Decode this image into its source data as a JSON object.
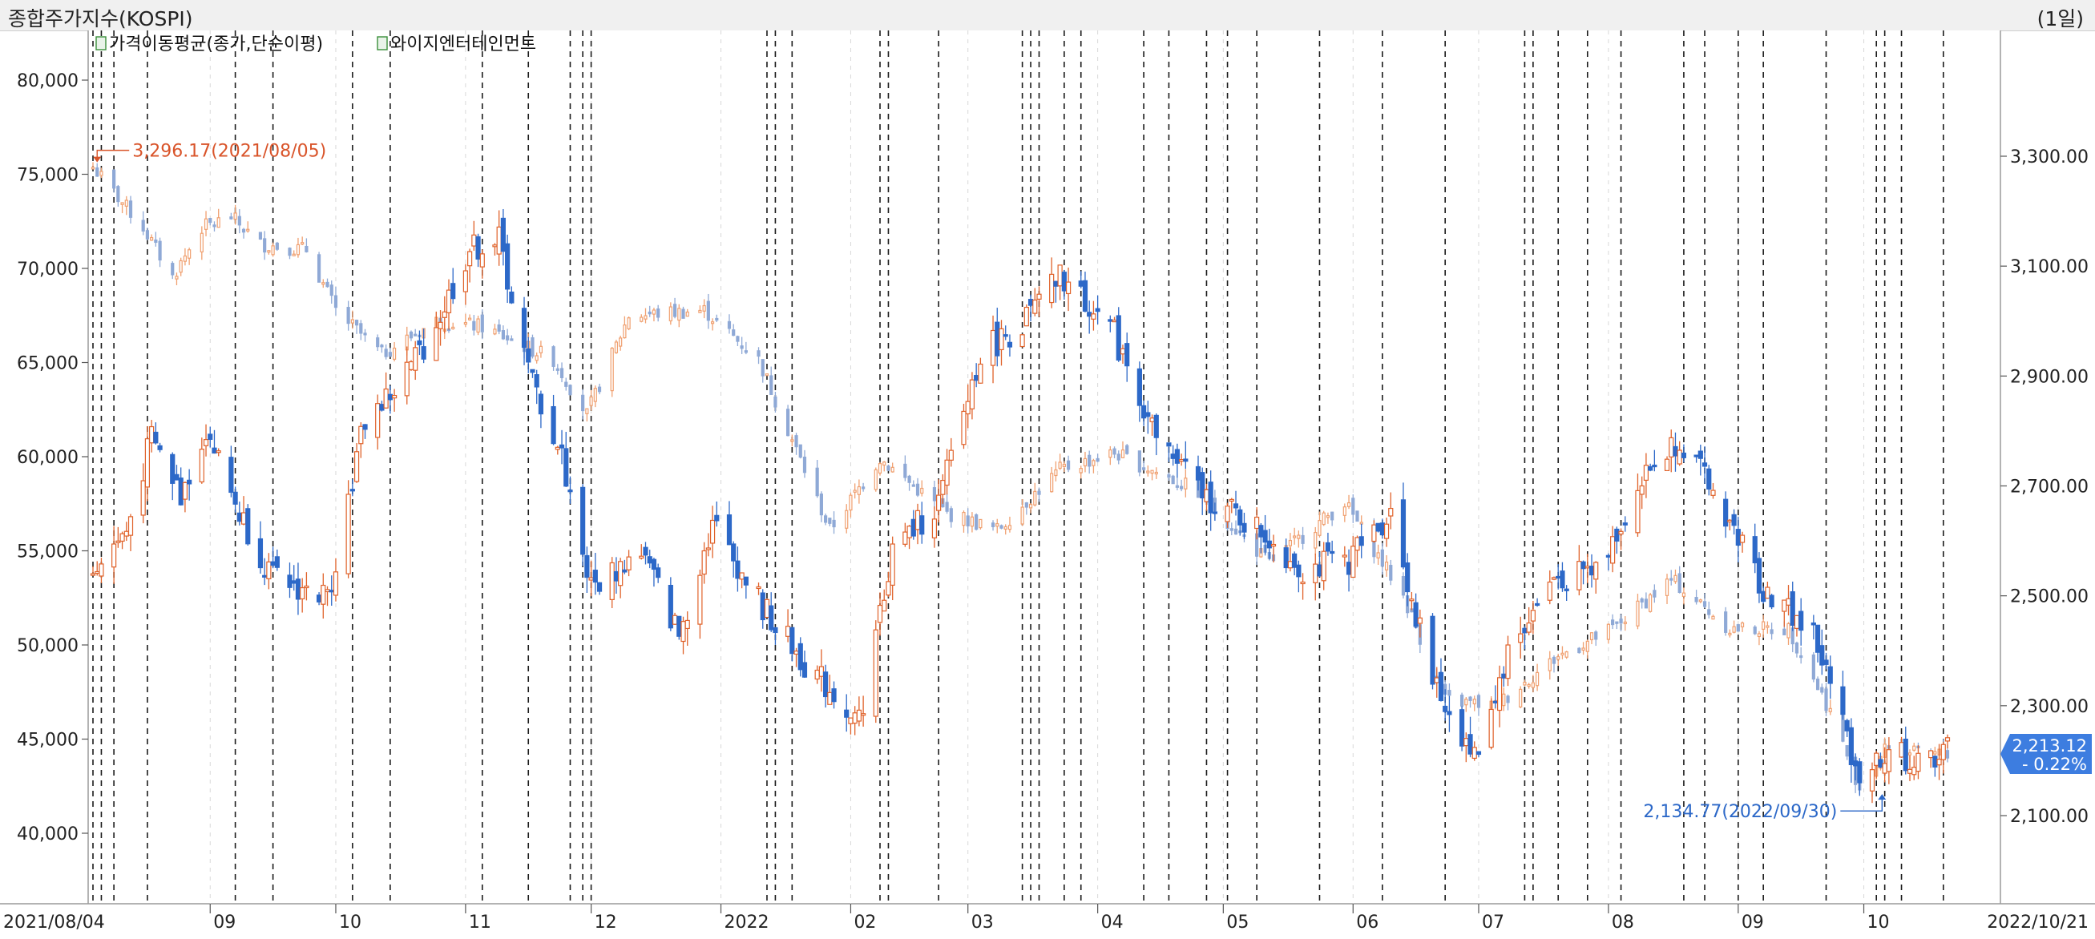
{
  "window": {
    "title": "종합주가지수(KOSPI)",
    "period": "(1일)"
  },
  "legend": [
    {
      "label": "가격이동평균(종가,단순이평)",
      "icon": "series-checkbox-icon"
    },
    {
      "label": "와이지엔터테인먼트",
      "icon": "series-checkbox-icon"
    }
  ],
  "colors": {
    "up": "#e0622a",
    "down": "#2c68c8",
    "up_light": "#f0a070",
    "down_light": "#8fa9d6",
    "badge": "#3d7de0"
  },
  "current": {
    "value": "2,213.12",
    "change": "- 0.22%"
  },
  "annotations": {
    "high": {
      "text": "3,296.17(2021/08/05)",
      "value": 3296.17,
      "date": "2021-08-05"
    },
    "low": {
      "text": "2,134.77(2022/09/30)",
      "value": 2134.77,
      "date": "2022-09-30"
    }
  },
  "chart_data": {
    "type": "candlestick",
    "x_start": "2021-08-04",
    "x_end": "2022-10-21",
    "x_tick_labels": [
      "2021/08/04",
      "09",
      "10",
      "11",
      "12",
      "2022",
      "02",
      "03",
      "04",
      "05",
      "06",
      "07",
      "08",
      "09",
      "10",
      "2022/10/21"
    ],
    "y_left": {
      "ticks": [
        "80,000",
        "75,000",
        "70,000",
        "65,000",
        "60,000",
        "55,000",
        "50,000",
        "45,000",
        "40,000"
      ],
      "range": [
        36000,
        84000
      ]
    },
    "y_right": {
      "ticks": [
        "3,300.00",
        "3,100.00",
        "2,900.00",
        "2,700.00",
        "2,500.00",
        "2,300.00",
        "2,100.00"
      ],
      "range": [
        1940,
        3500
      ]
    },
    "grid": "vertical-dashed",
    "series": [
      {
        "name": "종합주가지수(KOSPI)",
        "axis": "right",
        "points": [
          [
            "2021-08-04",
            3280
          ],
          [
            "2021-08-16",
            3170
          ],
          [
            "2021-08-23",
            3080
          ],
          [
            "2021-08-30",
            3170
          ],
          [
            "2021-09-06",
            3190
          ],
          [
            "2021-09-13",
            3140
          ],
          [
            "2021-09-24",
            3130
          ],
          [
            "2021-10-01",
            3020
          ],
          [
            "2021-10-12",
            2940
          ],
          [
            "2021-10-25",
            3000
          ],
          [
            "2021-11-05",
            2990
          ],
          [
            "2021-11-22",
            2930
          ],
          [
            "2021-11-30",
            2830
          ],
          [
            "2021-12-10",
            3010
          ],
          [
            "2021-12-28",
            3020
          ],
          [
            "2022-01-10",
            2930
          ],
          [
            "2022-01-27",
            2620
          ],
          [
            "2022-02-08",
            2750
          ],
          [
            "2022-02-24",
            2650
          ],
          [
            "2022-03-08",
            2620
          ],
          [
            "2022-03-23",
            2730
          ],
          [
            "2022-04-05",
            2760
          ],
          [
            "2022-04-25",
            2690
          ],
          [
            "2022-05-12",
            2560
          ],
          [
            "2022-05-30",
            2670
          ],
          [
            "2022-06-13",
            2500
          ],
          [
            "2022-06-23",
            2310
          ],
          [
            "2022-07-05",
            2300
          ],
          [
            "2022-07-20",
            2390
          ],
          [
            "2022-08-02",
            2440
          ],
          [
            "2022-08-16",
            2530
          ],
          [
            "2022-08-30",
            2440
          ],
          [
            "2022-09-13",
            2440
          ],
          [
            "2022-09-23",
            2290
          ],
          [
            "2022-09-30",
            2150
          ],
          [
            "2022-10-07",
            2230
          ],
          [
            "2022-10-14",
            2210
          ],
          [
            "2022-10-21",
            2213.12
          ]
        ]
      },
      {
        "name": "와이지엔터테인먼트",
        "axis": "left",
        "points": [
          [
            "2021-08-04",
            54000
          ],
          [
            "2021-08-12",
            56000
          ],
          [
            "2021-08-18",
            61000
          ],
          [
            "2021-08-25",
            58000
          ],
          [
            "2021-08-31",
            61500
          ],
          [
            "2021-09-08",
            57000
          ],
          [
            "2021-09-16",
            53500
          ],
          [
            "2021-09-29",
            52500
          ],
          [
            "2021-10-08",
            62000
          ],
          [
            "2021-10-15",
            63500
          ],
          [
            "2021-10-25",
            67000
          ],
          [
            "2021-11-02",
            71000
          ],
          [
            "2021-11-09",
            71500
          ],
          [
            "2021-11-16",
            64500
          ],
          [
            "2021-11-24",
            60000
          ],
          [
            "2021-12-01",
            53000
          ],
          [
            "2021-12-13",
            55000
          ],
          [
            "2021-12-22",
            50500
          ],
          [
            "2021-12-30",
            56500
          ],
          [
            "2022-01-11",
            52000
          ],
          [
            "2022-01-21",
            49000
          ],
          [
            "2022-02-03",
            46000
          ],
          [
            "2022-02-11",
            55000
          ],
          [
            "2022-02-22",
            57500
          ],
          [
            "2022-03-04",
            65500
          ],
          [
            "2022-03-14",
            67000
          ],
          [
            "2022-03-23",
            69500
          ],
          [
            "2022-04-04",
            67000
          ],
          [
            "2022-04-15",
            61000
          ],
          [
            "2022-04-26",
            58000
          ],
          [
            "2022-05-10",
            56000
          ],
          [
            "2022-05-20",
            54000
          ],
          [
            "2022-05-31",
            54500
          ],
          [
            "2022-06-10",
            57000
          ],
          [
            "2022-06-20",
            48000
          ],
          [
            "2022-06-30",
            44000
          ],
          [
            "2022-07-08",
            49500
          ],
          [
            "2022-07-19",
            53500
          ],
          [
            "2022-07-29",
            54000
          ],
          [
            "2022-08-10",
            59000
          ],
          [
            "2022-08-18",
            61000
          ],
          [
            "2022-08-30",
            56500
          ],
          [
            "2022-09-07",
            53000
          ],
          [
            "2022-09-19",
            50500
          ],
          [
            "2022-09-30",
            43000
          ],
          [
            "2022-10-07",
            44500
          ],
          [
            "2022-10-14",
            43500
          ],
          [
            "2022-10-21",
            44500
          ]
        ]
      }
    ],
    "event_dates": [
      "2021-08-04",
      "2021-08-06",
      "2021-08-09",
      "2021-08-17",
      "2021-09-07",
      "2021-09-16",
      "2021-10-05",
      "2021-10-14",
      "2021-11-05",
      "2021-11-16",
      "2021-11-26",
      "2021-11-29",
      "2021-12-01",
      "2022-01-12",
      "2022-01-14",
      "2022-01-18",
      "2022-02-08",
      "2022-02-10",
      "2022-02-22",
      "2022-03-14",
      "2022-03-16",
      "2022-03-18",
      "2022-03-24",
      "2022-03-28",
      "2022-04-12",
      "2022-04-18",
      "2022-04-27",
      "2022-05-02",
      "2022-05-09",
      "2022-05-24",
      "2022-06-08",
      "2022-06-23",
      "2022-07-12",
      "2022-07-14",
      "2022-07-20",
      "2022-07-27",
      "2022-08-04",
      "2022-08-19",
      "2022-08-24",
      "2022-09-01",
      "2022-09-07",
      "2022-09-22",
      "2022-10-04",
      "2022-10-06",
      "2022-10-10",
      "2022-10-20"
    ]
  }
}
